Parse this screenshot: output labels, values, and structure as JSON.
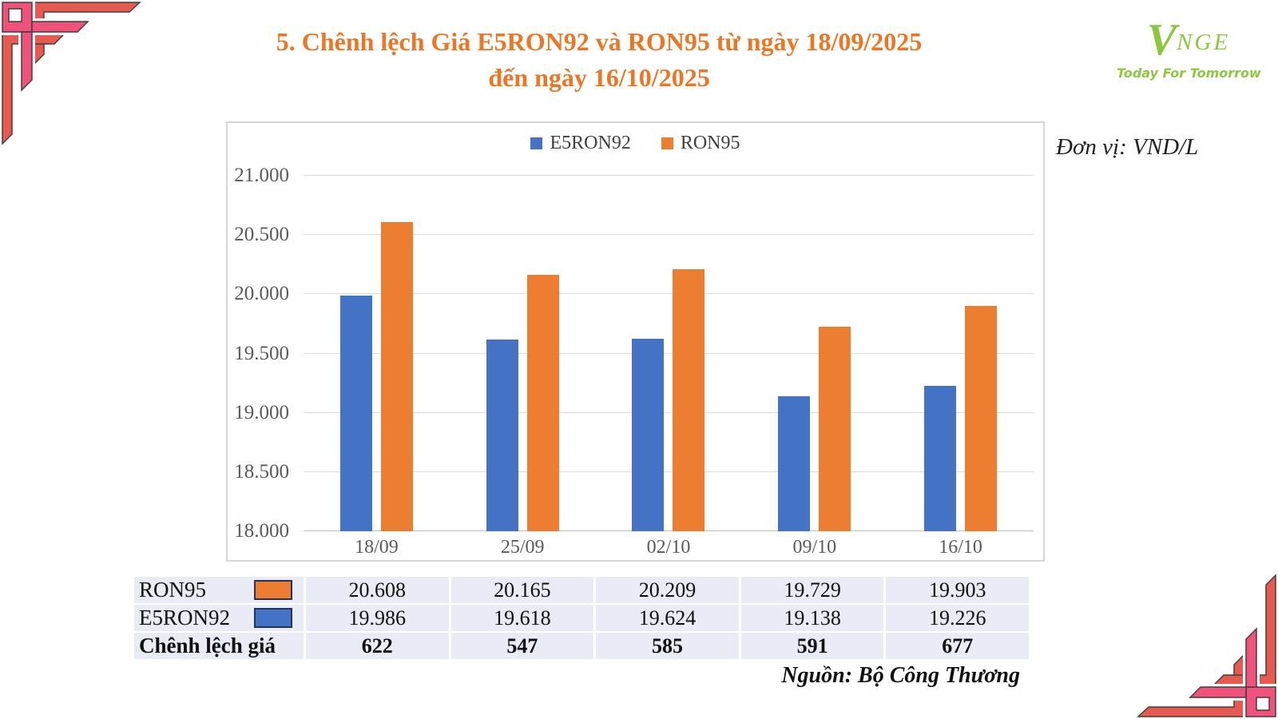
{
  "title": {
    "line1": "5. Chênh lệch Giá E5RON92 và RON95 từ ngày 18/09/2025",
    "line2": "đến ngày 16/10/2025"
  },
  "logo": {
    "mark": "V",
    "name": "NGE",
    "tagline": "Today For Tomorrow"
  },
  "unit_label": "Đơn vị: VND/L",
  "source_note": "Nguồn: Bộ Công Thương",
  "colors": {
    "title_orange": "#EC7623",
    "bar_blue": "#4472C4",
    "bar_orange": "#ED7D31",
    "logo_green": "#8DC63F",
    "ornament_pink": "#F0527C",
    "ornament_salmon": "#E8594F",
    "table_cell_bg": "#E9EBF5",
    "swatch_border": "#24335c"
  },
  "chart_data": {
    "type": "bar",
    "title": "",
    "xlabel": "",
    "ylabel": "",
    "unit": "VND/L",
    "categories": [
      "18/09",
      "25/09",
      "02/10",
      "09/10",
      "16/10"
    ],
    "series": [
      {
        "name": "E5RON92",
        "color": "#4472C4",
        "values": [
          19986,
          19618,
          19624,
          19138,
          19226
        ]
      },
      {
        "name": "RON95",
        "color": "#ED7D31",
        "values": [
          20608,
          20165,
          20209,
          19729,
          19903
        ]
      }
    ],
    "ylim": [
      18000,
      21000
    ],
    "yticks": {
      "values": [
        18000,
        18500,
        19000,
        19500,
        20000,
        20500,
        21000
      ],
      "labels": [
        "18.000",
        "18.500",
        "19.000",
        "19.500",
        "20.000",
        "20.500",
        "21.000"
      ]
    },
    "grid": true,
    "legend_position": "top-center"
  },
  "table": {
    "rows": [
      {
        "label": "RON95",
        "swatch": "#ED7D31",
        "bold": false,
        "values": [
          "20.608",
          "20.165",
          "20.209",
          "19.729",
          "19.903"
        ]
      },
      {
        "label": "E5RON92",
        "swatch": "#4472C4",
        "bold": false,
        "values": [
          "19.986",
          "19.618",
          "19.624",
          "19.138",
          "19.226"
        ]
      },
      {
        "label": "Chênh lệch giá",
        "swatch": null,
        "bold": true,
        "values": [
          "622",
          "547",
          "585",
          "591",
          "677"
        ]
      }
    ]
  }
}
